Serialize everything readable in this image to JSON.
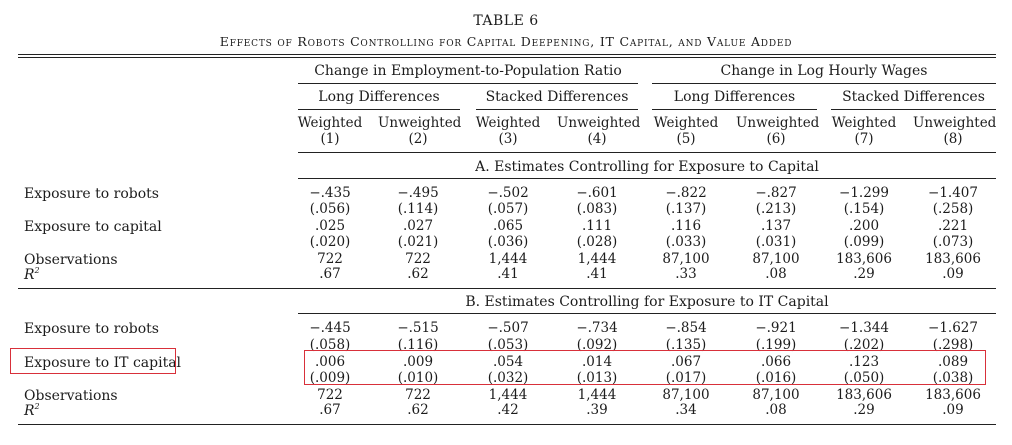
{
  "table": {
    "number": "TABLE 6",
    "caption": "Effects of Robots Controlling for Capital Deepening, IT Capital, and Value Added",
    "col_groups": [
      "Change in Employment-to-Population Ratio",
      "Change in Log Hourly Wages"
    ],
    "subgroups": [
      "Long Differences",
      "Stacked Differences",
      "Long Differences",
      "Stacked Differences"
    ],
    "col_types": [
      "Weighted",
      "Unweighted",
      "Weighted",
      "Unweighted",
      "Weighted",
      "Unweighted",
      "Weighted",
      "Unweighted"
    ],
    "col_nums": [
      "(1)",
      "(2)",
      "(3)",
      "(4)",
      "(5)",
      "(6)",
      "(7)",
      "(8)"
    ],
    "panel_a": {
      "title": "A. Estimates Controlling for Exposure to Capital",
      "labels": {
        "robots": "Exposure to robots",
        "capital": "Exposure to capital",
        "obs": "Observations",
        "r2_base": "R",
        "r2_sup": "2"
      },
      "robots": [
        "−.435",
        "−.495",
        "−.502",
        "−.601",
        "−.822",
        "−.827",
        "−1.299",
        "−1.407"
      ],
      "robots_se": [
        "(.056)",
        "(.114)",
        "(.057)",
        "(.083)",
        "(.137)",
        "(.213)",
        "(.154)",
        "(.258)"
      ],
      "capital": [
        ".025",
        ".027",
        ".065",
        ".111",
        ".116",
        ".137",
        ".200",
        ".221"
      ],
      "capital_se": [
        "(.020)",
        "(.021)",
        "(.036)",
        "(.028)",
        "(.033)",
        "(.031)",
        "(.099)",
        "(.073)"
      ],
      "obs": [
        "722",
        "722",
        "1,444",
        "1,444",
        "87,100",
        "87,100",
        "183,606",
        "183,606"
      ],
      "r2": [
        ".67",
        ".62",
        ".41",
        ".41",
        ".33",
        ".08",
        ".29",
        ".09"
      ]
    },
    "panel_b": {
      "title": "B. Estimates Controlling for Exposure to IT Capital",
      "labels": {
        "robots": "Exposure to robots",
        "it_capital": "Exposure to IT capital",
        "obs": "Observations",
        "r2_base": "R",
        "r2_sup": "2"
      },
      "robots": [
        "−.445",
        "−.515",
        "−.507",
        "−.734",
        "−.854",
        "−.921",
        "−1.344",
        "−1.627"
      ],
      "robots_se": [
        "(.058)",
        "(.116)",
        "(.053)",
        "(.092)",
        "(.135)",
        "(.199)",
        "(.202)",
        "(.298)"
      ],
      "it_capital": [
        ".006",
        ".009",
        ".054",
        ".014",
        ".067",
        ".066",
        ".123",
        ".089"
      ],
      "it_capital_se": [
        "(.009)",
        "(.010)",
        "(.032)",
        "(.013)",
        "(.017)",
        "(.016)",
        "(.050)",
        "(.038)"
      ],
      "obs": [
        "722",
        "722",
        "1,444",
        "1,444",
        "87,100",
        "87,100",
        "183,606",
        "183,606"
      ],
      "r2": [
        ".67",
        ".62",
        ".42",
        ".39",
        ".34",
        ".08",
        ".29",
        ".09"
      ]
    }
  }
}
